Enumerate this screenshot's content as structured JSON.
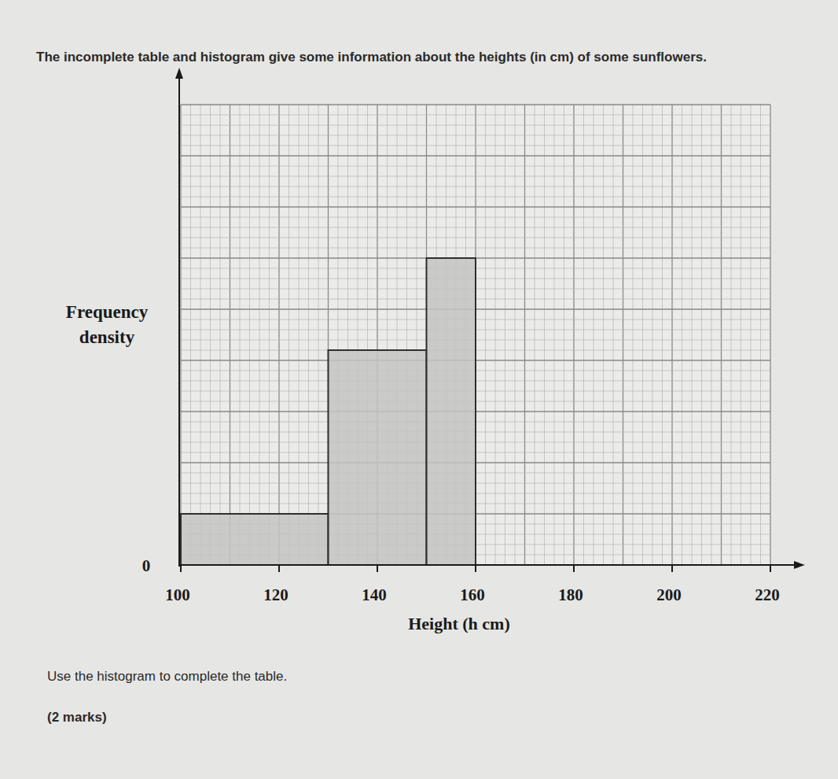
{
  "chart_data": {
    "type": "histogram",
    "title": "The incomplete table and histogram give some information about the heights (in cm) of some sunflowers.",
    "x_label": "Height (h cm)",
    "y_label": "Frequency density",
    "bins": [
      100,
      130,
      150,
      160
    ],
    "values": [
      1,
      4.2,
      6
    ],
    "color": "#c4c4c2",
    "xlim": [
      100,
      220
    ],
    "xticks": [
      100,
      120,
      140,
      160,
      180,
      200,
      220
    ],
    "ylim": [
      0,
      9
    ],
    "yticks": [
      0
    ],
    "grid": true,
    "instruction": "Use the histogram to complete the table.",
    "marks": "(2 marks)"
  }
}
